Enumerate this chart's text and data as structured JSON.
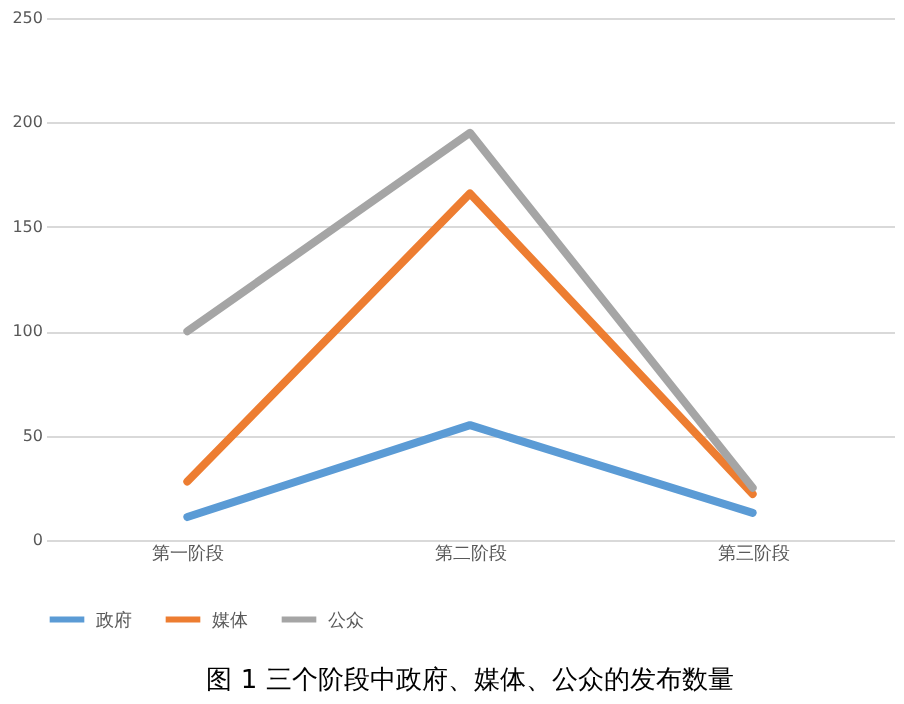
{
  "chart_data": {
    "type": "line",
    "title": "图 1   三个阶段中政府、媒体、公众的发布数量",
    "categories": [
      "第一阶段",
      "第二阶段",
      "第三阶段"
    ],
    "series": [
      {
        "name": "政府",
        "color": "#5b9bd5",
        "values": [
          11,
          55,
          13
        ]
      },
      {
        "name": "媒体",
        "color": "#ed7d31",
        "values": [
          28,
          166,
          22
        ]
      },
      {
        "name": "公众",
        "color": "#a5a5a5",
        "values": [
          100,
          195,
          25
        ]
      }
    ],
    "ylim": [
      0,
      250
    ],
    "yticks": [
      0,
      50,
      100,
      150,
      200,
      250
    ],
    "grid": "y",
    "legend": "bottom",
    "marker": "none",
    "line_style": "solid"
  }
}
